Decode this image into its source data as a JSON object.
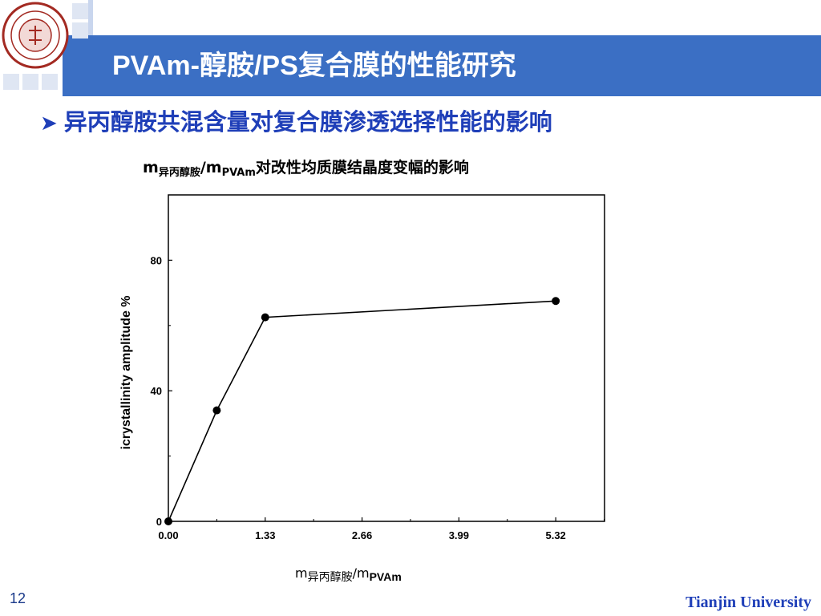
{
  "header": {
    "title": "PVAm-醇胺/PS复合膜的性能研究"
  },
  "bullet": {
    "text": "异丙醇胺共混含量对复合膜渗透选择性能的影响"
  },
  "chart_title": {
    "m": "m",
    "sub1": "异丙醇胺",
    "slash_m": "/m",
    "sub2": "PVAm",
    "rest": "对改性均质膜结晶度变幅的影响"
  },
  "x_title": {
    "m": "m",
    "sub1": "异丙醇胺",
    "slash_m": "/m",
    "sub2": "PVAm"
  },
  "footer": {
    "page_number": "12",
    "brand": "Tianjin University"
  },
  "colors": {
    "header_blue": "#3b6fc4",
    "bullet_blue": "#1f3fb8"
  },
  "chart_data": {
    "type": "line",
    "ylabel": "icrystallinity amplitude %",
    "x_ticks": [
      "0.00",
      "1.33",
      "2.66",
      "3.99",
      "5.32"
    ],
    "x_tick_values": [
      0,
      1.33,
      2.66,
      3.99,
      5.32
    ],
    "y_ticks": [
      "0",
      "40",
      "80"
    ],
    "y_tick_values": [
      0,
      40,
      80
    ],
    "xlim": [
      0,
      5.99
    ],
    "ylim": [
      0,
      100
    ],
    "grid": false,
    "series": [
      {
        "x": [
          0,
          0.665,
          1.33,
          5.32
        ],
        "y": [
          0,
          34,
          62.5,
          67.5
        ]
      }
    ]
  }
}
